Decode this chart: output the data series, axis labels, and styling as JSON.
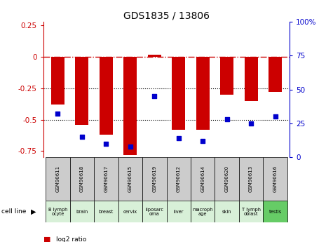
{
  "title": "GDS1835 / 13806",
  "samples": [
    "GSM90611",
    "GSM90618",
    "GSM90617",
    "GSM90615",
    "GSM90619",
    "GSM90612",
    "GSM90614",
    "GSM90620",
    "GSM90613",
    "GSM90616"
  ],
  "cell_lines": [
    "B lymph\nocyte",
    "brain",
    "breast",
    "cervix",
    "liposarc\noma",
    "liver",
    "macroph\nage",
    "skin",
    "T lymph\noblast",
    "testis"
  ],
  "cell_line_colors": [
    "#d8f0d8",
    "#d8f0d8",
    "#d8f0d8",
    "#d8f0d8",
    "#d8f0d8",
    "#d8f0d8",
    "#d8f0d8",
    "#d8f0d8",
    "#d8f0d8",
    "#66cc66"
  ],
  "log2_ratio": [
    -0.38,
    -0.54,
    -0.62,
    -0.78,
    0.02,
    -0.58,
    -0.58,
    -0.3,
    -0.35,
    -0.28
  ],
  "percentile_rank": [
    32,
    15,
    10,
    8,
    45,
    14,
    12,
    28,
    25,
    30
  ],
  "ylim_left": [
    -0.8,
    0.28
  ],
  "ylim_right": [
    0,
    100
  ],
  "red_color": "#cc0000",
  "blue_color": "#0000cc",
  "bar_width": 0.55,
  "dotted_lines": [
    -0.25,
    -0.5
  ],
  "right_ticks": [
    0,
    25,
    50,
    75,
    100
  ],
  "right_tick_labels": [
    "0",
    "25",
    "50",
    "75",
    "100%"
  ],
  "left_ticks": [
    -0.75,
    -0.5,
    -0.25,
    0,
    0.25
  ]
}
